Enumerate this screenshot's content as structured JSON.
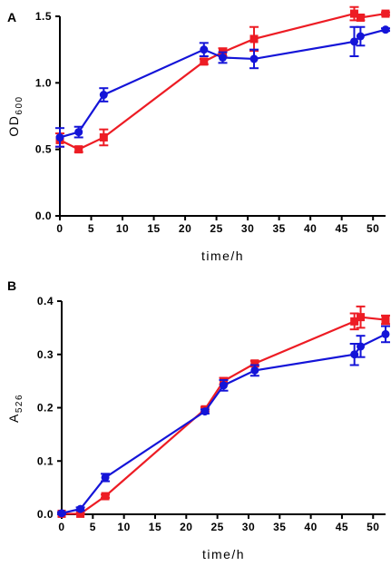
{
  "chart_data": [
    {
      "panel": "A",
      "type": "line",
      "xlabel": "time/h",
      "ylabel": {
        "main": "OD",
        "sub": "600"
      },
      "xlim": [
        0,
        52
      ],
      "ylim": [
        0,
        1.5
      ],
      "xticks": [
        0,
        5,
        10,
        15,
        20,
        25,
        30,
        35,
        40,
        45,
        50
      ],
      "xtick_labels": [
        "0",
        "5",
        "10",
        "15",
        "20",
        "25",
        "30",
        "35",
        "40",
        "45",
        "50"
      ],
      "yticks": [
        0,
        0.5,
        1.0,
        1.5
      ],
      "ytick_labels": [
        "0.0",
        "0.5",
        "1.0",
        "1.5"
      ],
      "series": [
        {
          "color": "#ed1c24",
          "marker": "square",
          "points": [
            {
              "x": 0,
              "y": 0.57,
              "err": 0.05
            },
            {
              "x": 3,
              "y": 0.5,
              "err": 0.02
            },
            {
              "x": 7,
              "y": 0.59,
              "err": 0.06
            },
            {
              "x": 23,
              "y": 1.16,
              "err": 0.02
            },
            {
              "x": 26,
              "y": 1.23,
              "err": 0.03
            },
            {
              "x": 31,
              "y": 1.33,
              "err": 0.09
            },
            {
              "x": 47,
              "y": 1.52,
              "err": 0.05
            },
            {
              "x": 48,
              "y": 1.49,
              "err": 0.02
            },
            {
              "x": 52,
              "y": 1.52,
              "err": 0.01
            }
          ]
        },
        {
          "color": "#1414d8",
          "marker": "circle",
          "points": [
            {
              "x": 0,
              "y": 0.59,
              "err": 0.07
            },
            {
              "x": 3,
              "y": 0.63,
              "err": 0.04
            },
            {
              "x": 7,
              "y": 0.91,
              "err": 0.05
            },
            {
              "x": 23,
              "y": 1.25,
              "err": 0.05
            },
            {
              "x": 26,
              "y": 1.19,
              "err": 0.04
            },
            {
              "x": 31,
              "y": 1.18,
              "err": 0.07
            },
            {
              "x": 47,
              "y": 1.31,
              "err": 0.11
            },
            {
              "x": 48,
              "y": 1.35,
              "err": 0.07
            },
            {
              "x": 52,
              "y": 1.4,
              "err": 0.01
            }
          ]
        }
      ]
    },
    {
      "panel": "B",
      "type": "line",
      "xlabel": "time/h",
      "ylabel": {
        "main": "A",
        "sub": "526"
      },
      "xlim": [
        0,
        52
      ],
      "ylim": [
        0,
        0.4
      ],
      "xticks": [
        0,
        5,
        10,
        15,
        20,
        25,
        30,
        35,
        40,
        45,
        50
      ],
      "xtick_labels": [
        "0",
        "5",
        "10",
        "15",
        "20",
        "25",
        "30",
        "35",
        "40",
        "45",
        "50"
      ],
      "yticks": [
        0,
        0.1,
        0.2,
        0.3,
        0.4
      ],
      "ytick_labels": [
        "0.0",
        "0.1",
        "0.2",
        "0.3",
        "0.4"
      ],
      "series": [
        {
          "color": "#ed1c24",
          "marker": "square",
          "points": [
            {
              "x": 0,
              "y": 0.001,
              "err": 0.001
            },
            {
              "x": 3,
              "y": 0.001,
              "err": 0.001
            },
            {
              "x": 7,
              "y": 0.034,
              "err": 0.003
            },
            {
              "x": 23,
              "y": 0.197,
              "err": 0.004
            },
            {
              "x": 26,
              "y": 0.25,
              "err": 0.006
            },
            {
              "x": 31,
              "y": 0.283,
              "err": 0.005
            },
            {
              "x": 47,
              "y": 0.362,
              "err": 0.015
            },
            {
              "x": 48,
              "y": 0.37,
              "err": 0.02
            },
            {
              "x": 52,
              "y": 0.365,
              "err": 0.008
            }
          ]
        },
        {
          "color": "#1414d8",
          "marker": "circle",
          "points": [
            {
              "x": 0,
              "y": 0.002,
              "err": 0.002
            },
            {
              "x": 3,
              "y": 0.01,
              "err": 0.003
            },
            {
              "x": 7,
              "y": 0.069,
              "err": 0.007
            },
            {
              "x": 23,
              "y": 0.193,
              "err": 0.004
            },
            {
              "x": 26,
              "y": 0.242,
              "err": 0.01
            },
            {
              "x": 31,
              "y": 0.27,
              "err": 0.01
            },
            {
              "x": 47,
              "y": 0.3,
              "err": 0.02
            },
            {
              "x": 48,
              "y": 0.315,
              "err": 0.02
            },
            {
              "x": 52,
              "y": 0.338,
              "err": 0.015
            }
          ]
        }
      ]
    }
  ]
}
